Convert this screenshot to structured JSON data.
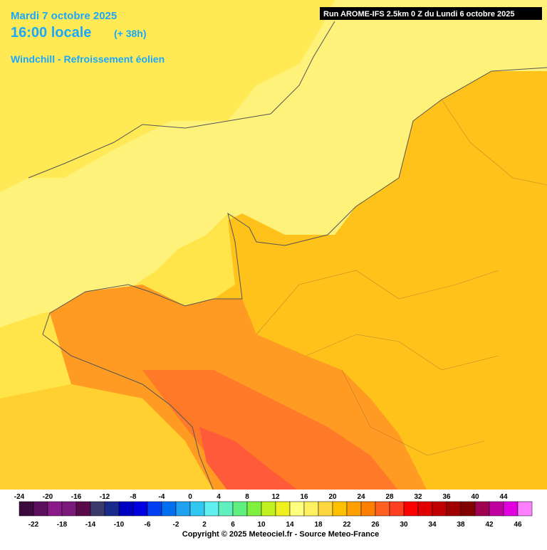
{
  "header": {
    "date": "Mardi 7 octobre 2025",
    "time": "16:00 locale",
    "lead": "(+ 38h)",
    "parameter": "Windchill - Refroissement éolien",
    "run": "Run AROME-IFS 2.5km 0 Z du Lundi 6 octobre 2025"
  },
  "legend": {
    "top_labels": [
      -24,
      -20,
      -16,
      -12,
      -8,
      -4,
      0,
      4,
      8,
      12,
      16,
      20,
      24,
      28,
      32,
      36,
      40,
      44
    ],
    "bottom_labels": [
      -22,
      -18,
      -14,
      -10,
      -6,
      -2,
      2,
      6,
      10,
      14,
      18,
      22,
      26,
      30,
      34,
      38,
      42,
      46
    ],
    "colors": [
      "#3c0a3c",
      "#5c0f5c",
      "#8a1a8a",
      "#7a1a7a",
      "#5a0a4a",
      "#3a3a6a",
      "#1a2a8a",
      "#0000c0",
      "#0000e0",
      "#0040f0",
      "#0070f0",
      "#20a0f0",
      "#30c8f0",
      "#60f0f0",
      "#60f0c0",
      "#60f080",
      "#80f040",
      "#c0f020",
      "#f0f020",
      "#ffff80",
      "#fff060",
      "#ffd840",
      "#ffc000",
      "#ffa000",
      "#ff8000",
      "#ff6020",
      "#ff4020",
      "#ff0000",
      "#e00000",
      "#c00000",
      "#a00000",
      "#800000",
      "#a00050",
      "#c000a0",
      "#e000e0",
      "#ff80ff"
    ]
  },
  "footer": {
    "copyright": "Copyright © 2025 Meteociel.fr - Source Meteo-France"
  }
}
